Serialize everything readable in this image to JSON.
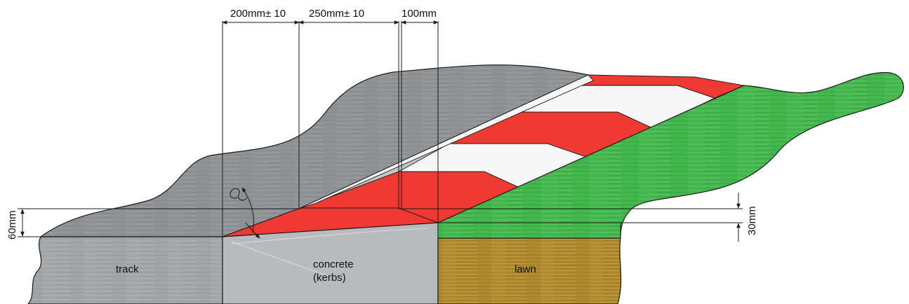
{
  "dimensions": {
    "kerb_width": "200mm± 10",
    "stripe_width": "250mm± 10",
    "edge_width": "100mm",
    "kerb_height": "60mm",
    "lawn_step": "30mm"
  },
  "materials": {
    "track": "track",
    "concrete_line1": "concrete",
    "concrete_line2": "(kerbs)",
    "lawn": "lawn"
  },
  "colors": {
    "track": "#a4a6a9",
    "track_dark": "#8f9195",
    "concrete": "#b9babc",
    "stripe_red": "#ee3a33",
    "stripe_white": "#f6f6f6",
    "lawn_green": "#45b84f",
    "soil": "#b08a2e",
    "line": "#1a1a1a"
  },
  "icons": {
    "angle_symbol": "angle-alpha-icon"
  }
}
